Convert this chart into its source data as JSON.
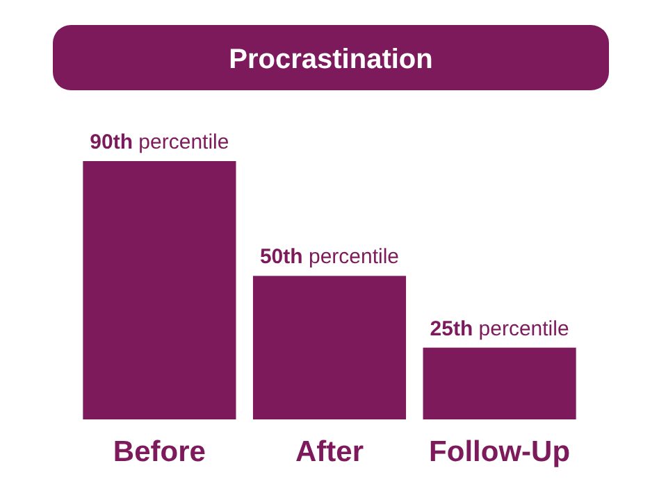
{
  "chart_data": {
    "type": "bar",
    "title": "Procrastination",
    "categories": [
      "Before",
      "After",
      "Follow-Up"
    ],
    "values": [
      90,
      50,
      25
    ],
    "value_labels": [
      "90th percentile",
      "50th percentile",
      "25th percentile"
    ],
    "color": "#7d1a5b"
  }
}
